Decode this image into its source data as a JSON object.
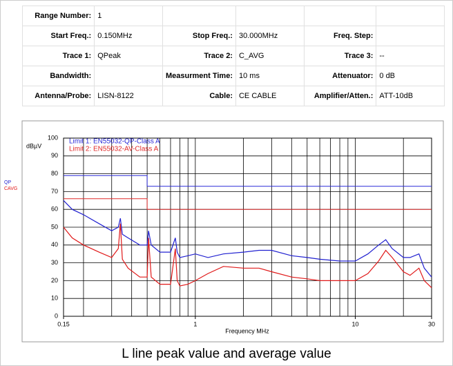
{
  "table": {
    "rows": [
      [
        {
          "label": "Range Number:",
          "value": "1"
        }
      ],
      [
        {
          "label": "Start Freq.:",
          "value": "0.150MHz"
        },
        {
          "label": "Stop Freq.:",
          "value": "30.000MHz"
        },
        {
          "label": "Freq. Step:"
        }
      ],
      [
        {
          "label": "Trace 1:",
          "value": "QPeak"
        },
        {
          "label": "Trace 2:",
          "value": "C_AVG"
        },
        {
          "label": "Trace 3:",
          "value": "--"
        }
      ],
      [
        {
          "label": "Bandwidth:"
        },
        {
          "label": "Measurment Time:",
          "value": "10 ms"
        },
        {
          "label": "Attenuator:",
          "value": "0 dB"
        }
      ],
      [
        {
          "label": "Antenna/Probe:",
          "value": "LISN-8122"
        },
        {
          "label": "Cable:",
          "value": "CE CABLE"
        },
        {
          "label": "Amplifier/Atten.:",
          "value": "ATT-10dB"
        }
      ]
    ]
  },
  "chart_data": {
    "type": "line",
    "x_label": "Frequency MHz",
    "y_label": "dBµV",
    "log_x": true,
    "grid": true,
    "xlim": [
      0.15,
      30
    ],
    "xticks": [
      0.15,
      1,
      10,
      30
    ],
    "ylim": [
      0,
      100
    ],
    "yticks": [
      0,
      10,
      20,
      30,
      40,
      50,
      60,
      70,
      80,
      90,
      100
    ],
    "series": [
      {
        "name": "Limit 1: EN55032-QP-Class A",
        "color": "#2a2ad8",
        "x": [
          0.15,
          0.5,
          0.5,
          30
        ],
        "values": [
          79,
          79,
          73,
          73
        ]
      },
      {
        "name": "Limit 2: EN55032-AV-Class A",
        "color": "#e02a2a",
        "x": [
          0.15,
          0.5,
          0.5,
          30
        ],
        "values": [
          66,
          66,
          60,
          60
        ]
      },
      {
        "name": "QP",
        "color": "#2020d0",
        "x": [
          0.15,
          0.17,
          0.2,
          0.25,
          0.3,
          0.33,
          0.34,
          0.35,
          0.38,
          0.45,
          0.5,
          0.51,
          0.53,
          0.6,
          0.7,
          0.75,
          0.77,
          0.8,
          0.9,
          1,
          1.2,
          1.5,
          2,
          2.5,
          3,
          4,
          5,
          6,
          8,
          10,
          12,
          14,
          15.5,
          17,
          20,
          22,
          25,
          27,
          30
        ],
        "values": [
          65,
          60,
          57,
          52,
          48,
          50,
          55,
          46,
          44,
          40,
          40,
          48,
          40,
          36,
          36,
          44,
          36,
          33,
          34,
          35,
          33,
          35,
          36,
          37,
          37,
          34,
          33,
          32,
          31,
          31,
          35,
          40,
          43,
          38,
          33,
          33,
          35,
          27,
          22
        ]
      },
      {
        "name": "CAVG",
        "color": "#e01818",
        "x": [
          0.15,
          0.17,
          0.2,
          0.25,
          0.3,
          0.33,
          0.34,
          0.35,
          0.38,
          0.45,
          0.5,
          0.51,
          0.53,
          0.6,
          0.7,
          0.75,
          0.77,
          0.8,
          0.9,
          1,
          1.2,
          1.5,
          2,
          2.5,
          3,
          4,
          5,
          6,
          8,
          10,
          12,
          14,
          15.5,
          17,
          20,
          22,
          25,
          27,
          30
        ],
        "values": [
          50,
          44,
          40,
          36,
          33,
          38,
          52,
          32,
          27,
          22,
          22,
          44,
          22,
          18,
          18,
          38,
          20,
          17,
          18,
          20,
          24,
          28,
          27,
          27,
          25,
          22,
          21,
          20,
          20,
          20,
          24,
          31,
          37,
          33,
          25,
          23,
          27,
          20,
          16
        ]
      }
    ]
  },
  "caption": "L line peak value and average value"
}
